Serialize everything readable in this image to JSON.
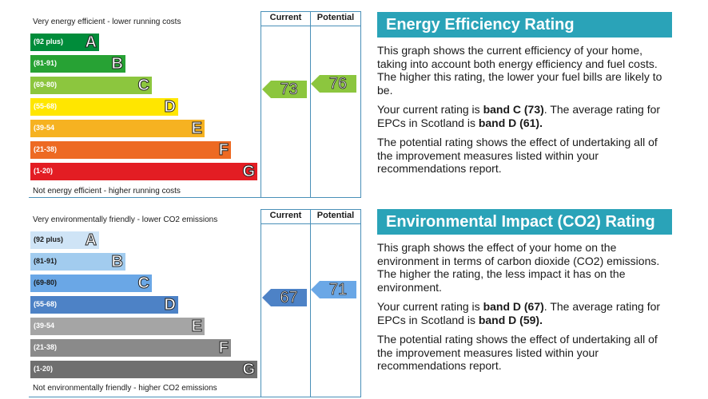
{
  "energy": {
    "top_label": "Very energy efficient - lower running costs",
    "bottom_label": "Not energy efficient - higher running costs",
    "col_current": "Current",
    "col_potential": "Potential",
    "bands": [
      {
        "range": "(92 plus)",
        "letter": "A",
        "color": "#008c3a"
      },
      {
        "range": "(81-91)",
        "letter": "B",
        "color": "#27a234"
      },
      {
        "range": "(69-80)",
        "letter": "C",
        "color": "#8cc63e"
      },
      {
        "range": "(55-68)",
        "letter": "D",
        "color": "#ffe600"
      },
      {
        "range": "(39-54",
        "letter": "E",
        "color": "#f6b221"
      },
      {
        "range": "(21-38)",
        "letter": "F",
        "color": "#ed6a23"
      },
      {
        "range": "(1-20)",
        "letter": "G",
        "color": "#e31d23"
      }
    ],
    "current": {
      "value": "73",
      "color": "#8cc63e"
    },
    "potential": {
      "value": "76",
      "color": "#8cc63e"
    }
  },
  "environment": {
    "top_label": "Very environmentally friendly - lower CO2 emissions",
    "bottom_label": "Not environmentally friendly - higher CO2 emissions",
    "col_current": "Current",
    "col_potential": "Potential",
    "bands": [
      {
        "range": "(92 plus)",
        "letter": "A",
        "color": "#cfe4f6"
      },
      {
        "range": "(81-91)",
        "letter": "B",
        "color": "#a2ccef"
      },
      {
        "range": "(69-80)",
        "letter": "C",
        "color": "#6aa7e6"
      },
      {
        "range": "(55-68)",
        "letter": "D",
        "color": "#4d82c6"
      },
      {
        "range": "(39-54",
        "letter": "E",
        "color": "#a5a5a5"
      },
      {
        "range": "(21-38)",
        "letter": "F",
        "color": "#8a8a8a"
      },
      {
        "range": "(1-20)",
        "letter": "G",
        "color": "#6f6f6f"
      }
    ],
    "current": {
      "value": "67",
      "color": "#4d82c6"
    },
    "potential": {
      "value": "71",
      "color": "#6aa7e6"
    }
  },
  "panels": {
    "energy": {
      "title": "Energy Efficiency Rating",
      "p1": "This graph shows the current efficiency of your home, taking into account both energy efficiency and fuel costs. The higher this rating, the lower your fuel bills are likely to be.",
      "p2_pre": "Your current rating is ",
      "p2_bold1": "band C (73)",
      "p2_mid": ". The average rating for EPCs in Scotland is ",
      "p2_bold2": "band D (61).",
      "p3": "The potential rating shows the effect of undertaking all of the improvement measures listed within your recommendations report."
    },
    "environment": {
      "title": "Environmental Impact (CO2) Rating",
      "p1": "This graph shows the effect of your home on the environment in terms of carbon dioxide (CO2) emissions. The higher the rating, the less impact it has on the environment.",
      "p2_pre": "Your current rating is ",
      "p2_bold1": "band D (67)",
      "p2_mid": ". The average rating for EPCs in Scotland is ",
      "p2_bold2": "band D (59).",
      "p3": "The potential rating shows the effect of undertaking all of the improvement measures listed within your recommendations report."
    }
  }
}
